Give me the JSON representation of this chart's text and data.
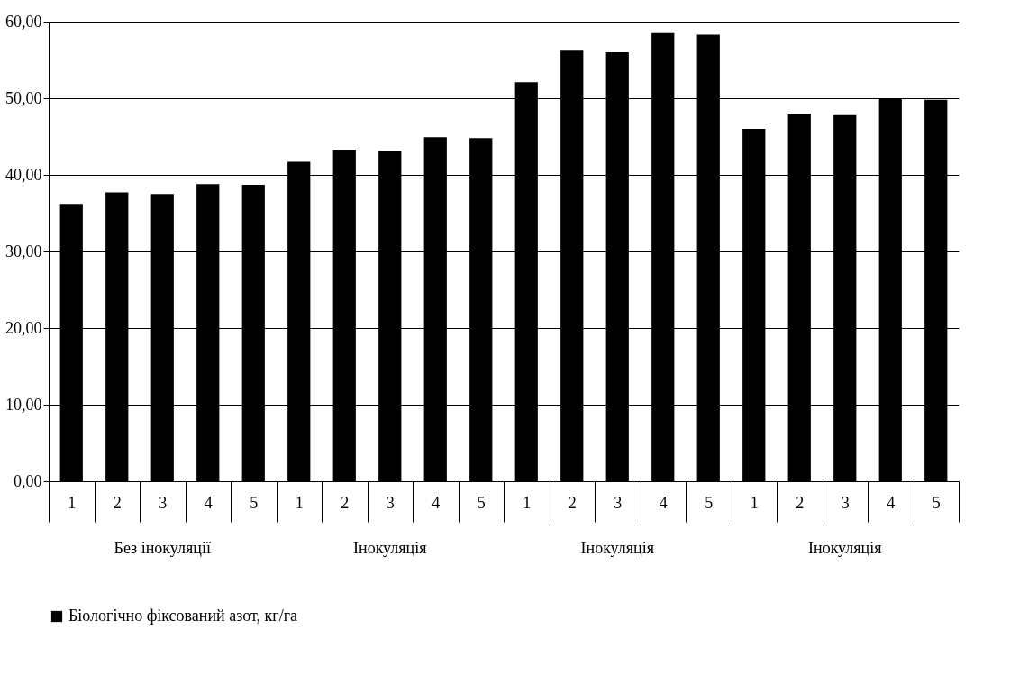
{
  "chart_data": {
    "type": "bar",
    "categories": [
      "1",
      "2",
      "3",
      "4",
      "5",
      "1",
      "2",
      "3",
      "4",
      "5",
      "1",
      "2",
      "3",
      "4",
      "5",
      "1",
      "2",
      "3",
      "4",
      "5"
    ],
    "series": [
      {
        "name": "Біологічно фіксований азот, кг/га",
        "color": "#000000",
        "values": [
          36.2,
          37.7,
          37.5,
          38.8,
          38.7,
          41.7,
          43.3,
          43.1,
          44.9,
          44.8,
          52.1,
          56.2,
          56.0,
          58.5,
          58.3,
          46.0,
          48.0,
          47.8,
          50.0,
          49.8
        ]
      }
    ],
    "annotations": [
      "Без інокуляції",
      "Інокуляція",
      "Інокуляція",
      "Інокуляція"
    ],
    "ylim": [
      0,
      60
    ],
    "yticks": [
      {
        "value": 0,
        "label": "0,00"
      },
      {
        "value": 10,
        "label": "10,00"
      },
      {
        "value": 20,
        "label": "20,00"
      },
      {
        "value": 30,
        "label": "30,00"
      },
      {
        "value": 40,
        "label": "40,00"
      },
      {
        "value": 50,
        "label": "50,00"
      },
      {
        "value": 60,
        "label": "60,00"
      }
    ],
    "grid": "y",
    "legend": "bottom"
  }
}
